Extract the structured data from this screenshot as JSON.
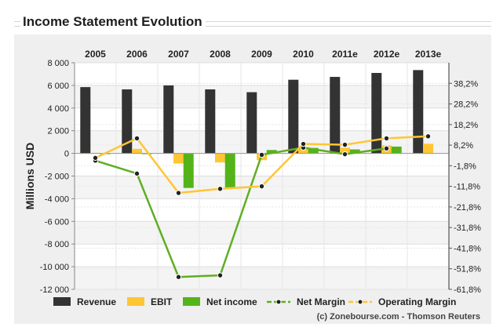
{
  "title": "Income Statement Evolution",
  "chart_data": {
    "type": "bar",
    "categories": [
      "2005",
      "2006",
      "2007",
      "2008",
      "2009",
      "2010",
      "2011e",
      "2012e",
      "2013e"
    ],
    "ylabel": "Millions USD",
    "ylim": [
      -12000,
      8000
    ],
    "yticks": [
      8000,
      6000,
      4000,
      2000,
      0,
      -2000,
      -4000,
      -6000,
      -8000,
      -10000,
      -12000
    ],
    "ytick_labels": [
      "8 000",
      "6 000",
      "4 000",
      "2 000",
      "0",
      "-2 000",
      "-4 000",
      "-6 000",
      "-8 000",
      "-10 000",
      "-12 000"
    ],
    "y2lim": [
      -61.8,
      48.2
    ],
    "y2ticks": [
      38.2,
      28.2,
      18.2,
      8.2,
      -1.8,
      -11.8,
      -21.8,
      -31.8,
      -41.8,
      -51.8,
      -61.8
    ],
    "y2tick_labels": [
      "38,2%",
      "28,2%",
      "18,2%",
      "8,2%",
      "-1,8%",
      "-11,8%",
      "-21,8%",
      "-31,8%",
      "-41,8%",
      "-51,8%",
      "-61,8%"
    ],
    "series": [
      {
        "name": "Revenue",
        "kind": "bar",
        "color": "#333333",
        "values": [
          5850,
          5650,
          6000,
          5650,
          5400,
          6500,
          6750,
          7100,
          7350
        ]
      },
      {
        "name": "EBIT",
        "kind": "bar",
        "color": "#ffc634",
        "values": [
          50,
          400,
          -900,
          -800,
          -600,
          550,
          500,
          700,
          850
        ]
      },
      {
        "name": "Net income",
        "kind": "bar",
        "color": "#55b31a",
        "values": [
          -20,
          -10,
          -3050,
          -3000,
          300,
          480,
          350,
          600,
          0
        ]
      },
      {
        "name": "Net Margin",
        "kind": "line",
        "axis": "right",
        "color": "#5fae24",
        "values": [
          0.7,
          -5.6,
          -55.8,
          -55,
          3.5,
          7,
          3.8,
          6.6,
          null
        ]
      },
      {
        "name": "Operating Margin",
        "kind": "line",
        "axis": "right",
        "color": "#ffc634",
        "values": [
          2,
          11.5,
          -15,
          -13,
          -11.8,
          8.8,
          8.4,
          11.5,
          12.5
        ]
      }
    ],
    "legend_position": "bottom",
    "grid": true
  },
  "source": "(c) Zonebourse.com - Thomson Reuters"
}
